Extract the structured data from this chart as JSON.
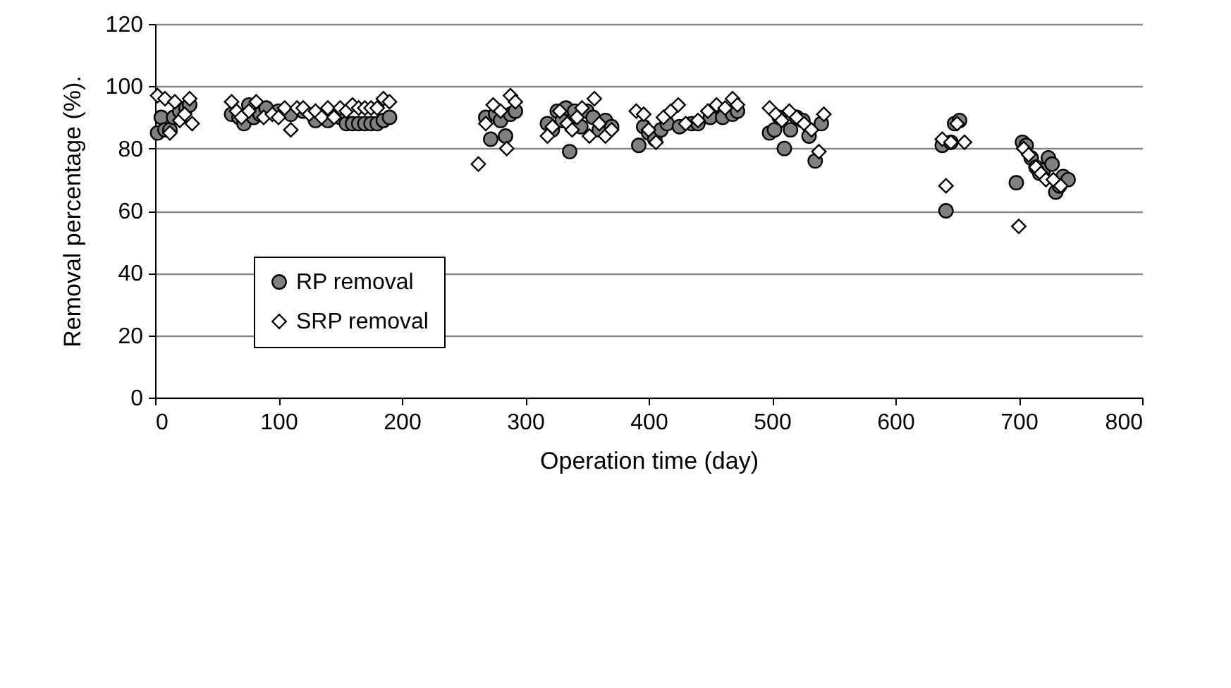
{
  "chart_data": {
    "type": "scatter",
    "xlabel": "Operation time (day)",
    "ylabel": "Removal percentage (%).",
    "xlim": [
      0,
      800
    ],
    "xticks": [
      0,
      100,
      200,
      300,
      400,
      500,
      600,
      700,
      800
    ],
    "ylim": [
      0,
      120
    ],
    "yticks": [
      0,
      20,
      40,
      60,
      80,
      100,
      120
    ],
    "grid": "y",
    "legend": "bottom left",
    "series": [
      {
        "name": "RP removal",
        "color": "#808080",
        "marker": "circle",
        "x": [
          2,
          5,
          8,
          12,
          15,
          20,
          25,
          28,
          62,
          68,
          72,
          76,
          80,
          85,
          90,
          100,
          110,
          120,
          130,
          140,
          150,
          155,
          160,
          165,
          170,
          175,
          180,
          185,
          190,
          268,
          272,
          276,
          280,
          284,
          288,
          292,
          318,
          322,
          326,
          330,
          333,
          336,
          340,
          345,
          350,
          355,
          360,
          365,
          370,
          392,
          396,
          400,
          405,
          410,
          415,
          425,
          435,
          440,
          450,
          460,
          468,
          472,
          498,
          502,
          506,
          510,
          515,
          520,
          525,
          530,
          535,
          540,
          638,
          641,
          645,
          648,
          652,
          698,
          703,
          706,
          710,
          714,
          717,
          720,
          724,
          727,
          730,
          733,
          736,
          740
        ],
        "values": [
          85,
          90,
          86,
          86,
          90,
          92,
          93,
          94,
          91,
          90,
          88,
          94,
          90,
          91,
          93,
          92,
          91,
          92,
          89,
          89,
          90,
          88,
          88,
          88,
          88,
          88,
          88,
          89,
          90,
          90,
          83,
          91,
          89,
          84,
          91,
          92,
          88,
          86,
          92,
          89,
          93,
          79,
          92,
          87,
          92,
          90,
          86,
          89,
          87,
          81,
          87,
          85,
          83,
          86,
          88,
          87,
          88,
          88,
          90,
          90,
          91,
          92,
          85,
          86,
          90,
          80,
          86,
          90,
          89,
          84,
          76,
          88,
          81,
          60,
          82,
          88,
          89,
          69,
          82,
          81,
          77,
          74,
          72,
          73,
          77,
          75,
          66,
          68,
          71,
          70
        ]
      },
      {
        "name": "SRP removal",
        "color": "#ffffff",
        "marker": "diamond",
        "x": [
          2,
          8,
          12,
          16,
          20,
          24,
          28,
          30,
          62,
          66,
          70,
          76,
          82,
          88,
          95,
          100,
          105,
          110,
          115,
          120,
          125,
          130,
          135,
          140,
          145,
          150,
          155,
          160,
          165,
          170,
          175,
          180,
          185,
          190,
          262,
          268,
          274,
          280,
          285,
          288,
          292,
          318,
          322,
          328,
          334,
          338,
          342,
          346,
          352,
          356,
          360,
          365,
          370,
          390,
          396,
          400,
          406,
          412,
          418,
          424,
          430,
          440,
          448,
          455,
          462,
          468,
          472,
          498,
          503,
          508,
          514,
          520,
          526,
          532,
          538,
          542,
          638,
          641,
          645,
          650,
          656,
          700,
          704,
          708,
          714,
          718,
          722,
          728,
          734
        ],
        "values": [
          97,
          96,
          85,
          95,
          89,
          91,
          96,
          88,
          95,
          92,
          90,
          92,
          95,
          90,
          91,
          90,
          93,
          86,
          93,
          93,
          91,
          92,
          90,
          93,
          90,
          93,
          92,
          94,
          93,
          93,
          93,
          93,
          96,
          95,
          75,
          88,
          94,
          92,
          80,
          97,
          95,
          84,
          87,
          92,
          88,
          86,
          90,
          93,
          84,
          96,
          88,
          84,
          86,
          92,
          91,
          86,
          82,
          90,
          92,
          94,
          88,
          89,
          92,
          94,
          93,
          96,
          94,
          93,
          91,
          89,
          92,
          90,
          88,
          86,
          79,
          91,
          83,
          68,
          82,
          88,
          82,
          55,
          80,
          78,
          74,
          72,
          70,
          70,
          68
        ]
      }
    ]
  }
}
